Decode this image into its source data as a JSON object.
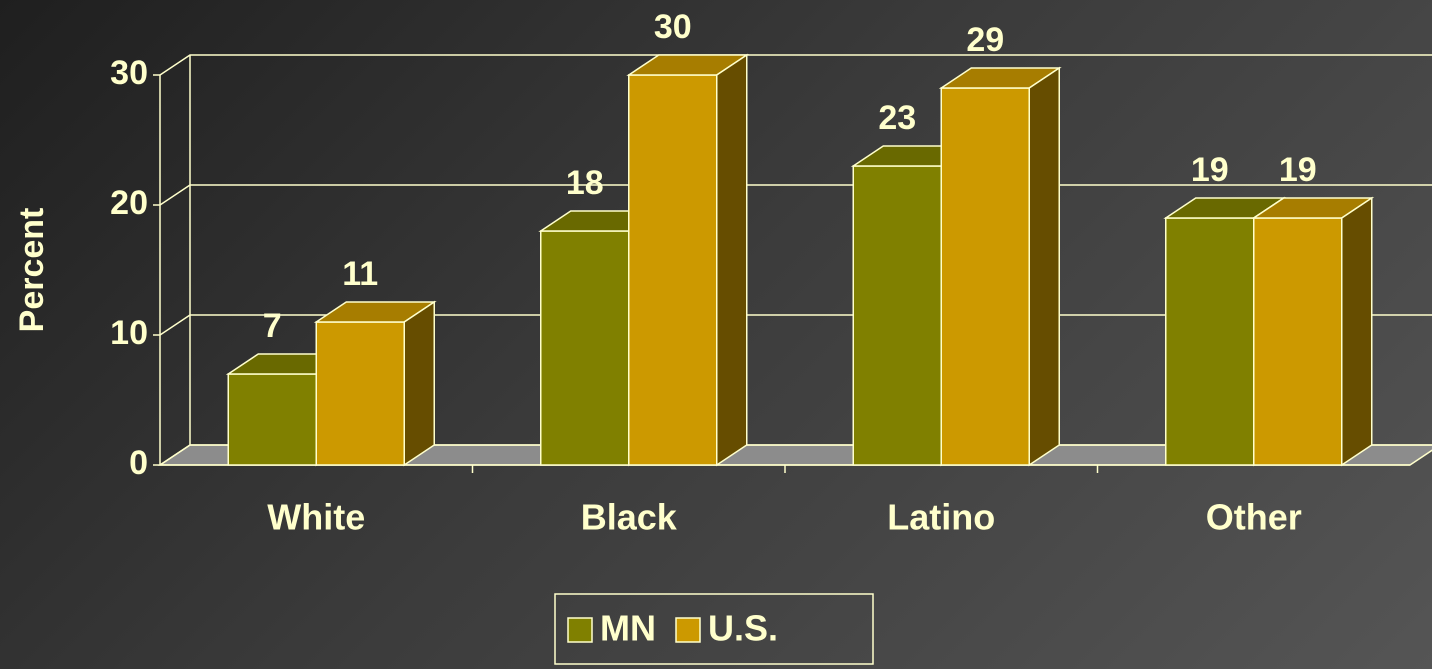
{
  "chart_data": {
    "type": "bar3d",
    "ylabel": "Percent",
    "categories": [
      "White",
      "Black",
      "Latino",
      "Other"
    ],
    "series": [
      {
        "name": "MN",
        "color": "#808000",
        "values": [
          7,
          18,
          23,
          19
        ]
      },
      {
        "name": "U.S.",
        "color": "#cc9900",
        "values": [
          11,
          30,
          29,
          19
        ]
      }
    ],
    "ylim": [
      0,
      30
    ],
    "yticks": [
      0,
      10,
      20,
      30
    ],
    "grid": true,
    "legend": "bottom"
  }
}
